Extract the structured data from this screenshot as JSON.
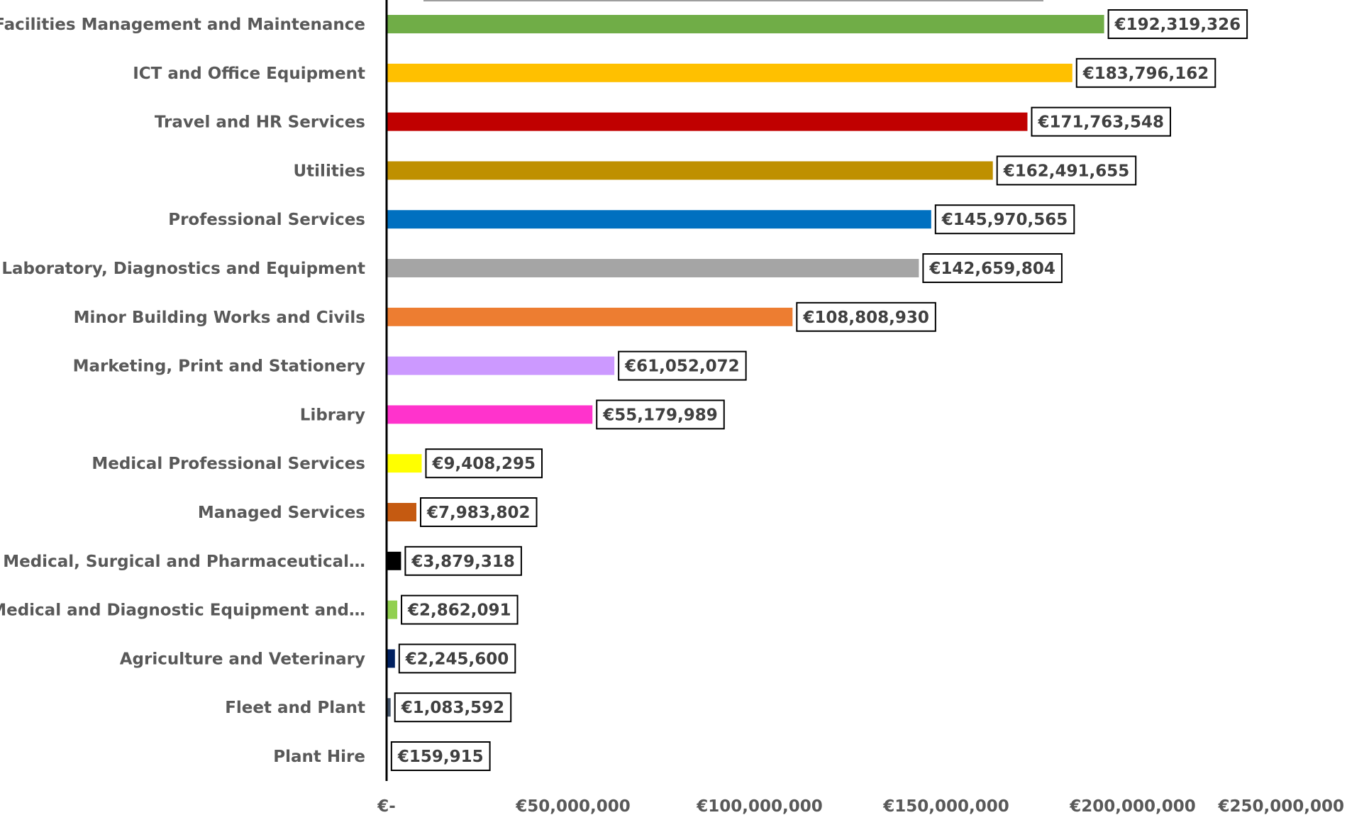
{
  "chart_data": {
    "type": "bar",
    "orientation": "horizontal",
    "title": "",
    "xlabel": "",
    "ylabel": "",
    "xlim": [
      0,
      250000000
    ],
    "grid": false,
    "legend": "none",
    "x_ticks": [
      {
        "value": 0,
        "label": "€-"
      },
      {
        "value": 50000000,
        "label": "€50,000,000"
      },
      {
        "value": 100000000,
        "label": "€100,000,000"
      },
      {
        "value": 150000000,
        "label": "€150,000,000"
      },
      {
        "value": 200000000,
        "label": "€200,000,000"
      },
      {
        "value": 250000000,
        "label": "€250,000,000"
      }
    ],
    "bars": [
      {
        "category": "Facilities Management and Maintenance",
        "value": 192319326,
        "label": "€192,319,326",
        "color": "#70AD47"
      },
      {
        "category": "ICT and Office Equipment",
        "value": 183796162,
        "label": "€183,796,162",
        "color": "#FFC000"
      },
      {
        "category": "Travel and HR Services",
        "value": 171763548,
        "label": "€171,763,548",
        "color": "#C00000"
      },
      {
        "category": "Utilities",
        "value": 162491655,
        "label": "€162,491,655",
        "color": "#BF9000"
      },
      {
        "category": "Professional Services",
        "value": 145970565,
        "label": "€145,970,565",
        "color": "#0070C0"
      },
      {
        "category": "Laboratory, Diagnostics and Equipment",
        "value": 142659804,
        "label": "€142,659,804",
        "color": "#A5A5A5"
      },
      {
        "category": "Minor Building Works and Civils",
        "value": 108808930,
        "label": "€108,808,930",
        "color": "#ED7D31"
      },
      {
        "category": "Marketing, Print and Stationery",
        "value": 61052072,
        "label": "€61,052,072",
        "color": "#CC99FF"
      },
      {
        "category": "Library",
        "value": 55179989,
        "label": "€55,179,989",
        "color": "#FF33CC"
      },
      {
        "category": "Medical Professional Services",
        "value": 9408295,
        "label": "€9,408,295",
        "color": "#FFFF00"
      },
      {
        "category": "Managed Services",
        "value": 7983802,
        "label": "€7,983,802",
        "color": "#C55A11"
      },
      {
        "category": "Medical, Surgical and Pharmaceutical…",
        "value": 3879318,
        "label": "€3,879,318",
        "color": "#000000"
      },
      {
        "category": "Medical and Diagnostic Equipment and…",
        "value": 2862091,
        "label": "€2,862,091",
        "color": "#92D050"
      },
      {
        "category": "Agriculture and Veterinary",
        "value": 2245600,
        "label": "€2,245,600",
        "color": "#002060"
      },
      {
        "category": "Fleet and Plant",
        "value": 1083592,
        "label": "€1,083,592",
        "color": "#44546A"
      },
      {
        "category": "Plant Hire",
        "value": 159915,
        "label": "€159,915",
        "color": "#7F7F7F"
      }
    ]
  }
}
